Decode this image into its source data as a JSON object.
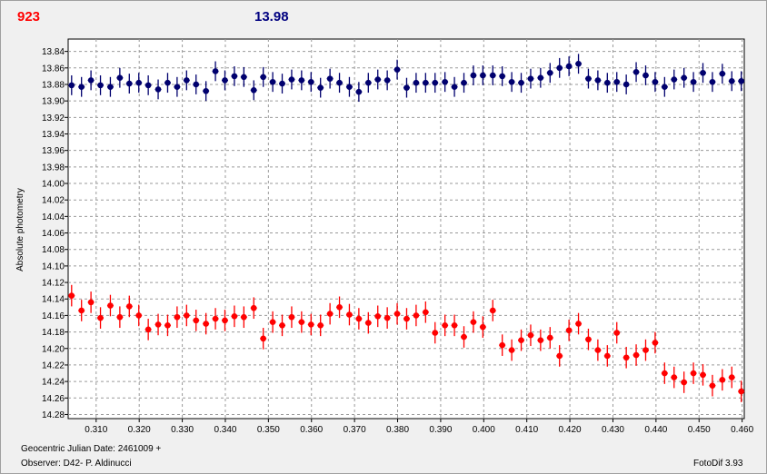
{
  "header": {
    "left_value": "923",
    "right_value": "13.98"
  },
  "footer": {
    "date_label": "Geocentric Julian Date: 2461009 +",
    "observer_label": "Observer: D42- P. Aldinucci",
    "software_label": "FotoDif 3.93"
  },
  "colors": {
    "blue_series": "#00006e",
    "red_series": "#ff0000",
    "grid": "#9a9a9a",
    "header_left": "#ff0000",
    "header_right": "#000080"
  },
  "chart_data": {
    "type": "scatter",
    "title": "",
    "xlabel": "",
    "ylabel": "Absolute photometry",
    "xlim": [
      0.3035,
      0.4605
    ],
    "ylim": [
      13.825,
      14.285
    ],
    "y_inverted": true,
    "grid": true,
    "x_ticks": [
      "0.310",
      "0.320",
      "0.330",
      "0.340",
      "0.350",
      "0.360",
      "0.370",
      "0.380",
      "0.390",
      "0.400",
      "0.410",
      "0.420",
      "0.430",
      "0.440",
      "0.450",
      "0.460"
    ],
    "y_ticks": [
      "13.84",
      "13.86",
      "13.88",
      "13.90",
      "13.92",
      "13.94",
      "13.96",
      "13.98",
      "14.00",
      "14.02",
      "14.04",
      "14.06",
      "14.08",
      "14.10",
      "14.12",
      "14.14",
      "14.16",
      "14.18",
      "14.20",
      "14.22",
      "14.24",
      "14.26",
      "14.28"
    ],
    "series": [
      {
        "color": "#00006e",
        "error": 0.012,
        "x": [
          0.3043,
          0.3066,
          0.3088,
          0.311,
          0.3133,
          0.3155,
          0.3177,
          0.3199,
          0.3221,
          0.3244,
          0.3266,
          0.3288,
          0.331,
          0.3332,
          0.3355,
          0.3377,
          0.3399,
          0.3421,
          0.3443,
          0.3466,
          0.3488,
          0.351,
          0.3532,
          0.3554,
          0.3577,
          0.3599,
          0.3621,
          0.3643,
          0.3665,
          0.3688,
          0.371,
          0.3732,
          0.3754,
          0.3776,
          0.3799,
          0.3821,
          0.3843,
          0.3865,
          0.3887,
          0.391,
          0.3932,
          0.3954,
          0.3976,
          0.3998,
          0.4021,
          0.4043,
          0.4065,
          0.4087,
          0.4109,
          0.4132,
          0.4154,
          0.4176,
          0.4198,
          0.422,
          0.4243,
          0.4265,
          0.4287,
          0.4309,
          0.4331,
          0.4354,
          0.4376,
          0.4398,
          0.442,
          0.4442,
          0.4465,
          0.4487,
          0.4509,
          0.4531,
          0.4554,
          0.4576,
          0.4598
        ],
        "y": [
          13.881,
          13.883,
          13.875,
          13.881,
          13.883,
          13.872,
          13.879,
          13.878,
          13.881,
          13.886,
          13.878,
          13.883,
          13.875,
          13.88,
          13.888,
          13.864,
          13.875,
          13.87,
          13.871,
          13.887,
          13.871,
          13.877,
          13.879,
          13.874,
          13.875,
          13.877,
          13.884,
          13.873,
          13.878,
          13.883,
          13.889,
          13.878,
          13.874,
          13.875,
          13.862,
          13.884,
          13.878,
          13.878,
          13.878,
          13.877,
          13.883,
          13.878,
          13.869,
          13.869,
          13.869,
          13.87,
          13.877,
          13.878,
          13.873,
          13.872,
          13.866,
          13.86,
          13.858,
          13.855,
          13.873,
          13.875,
          13.878,
          13.877,
          13.88,
          13.865,
          13.869,
          13.877,
          13.883,
          13.874,
          13.872,
          13.877,
          13.866,
          13.877,
          13.867,
          13.876,
          13.876
        ]
      },
      {
        "color": "#ff0000",
        "error": 0.013,
        "x": [
          0.3043,
          0.3066,
          0.3088,
          0.311,
          0.3133,
          0.3155,
          0.3177,
          0.3199,
          0.3221,
          0.3244,
          0.3266,
          0.3288,
          0.331,
          0.3332,
          0.3355,
          0.3377,
          0.3399,
          0.3421,
          0.3443,
          0.3466,
          0.3488,
          0.351,
          0.3532,
          0.3554,
          0.3577,
          0.3599,
          0.3621,
          0.3643,
          0.3665,
          0.3688,
          0.371,
          0.3732,
          0.3754,
          0.3776,
          0.3799,
          0.3821,
          0.3843,
          0.3865,
          0.3887,
          0.391,
          0.3932,
          0.3954,
          0.3976,
          0.3998,
          0.4021,
          0.4043,
          0.4065,
          0.4087,
          0.4109,
          0.4132,
          0.4154,
          0.4176,
          0.4198,
          0.422,
          0.4243,
          0.4265,
          0.4287,
          0.4309,
          0.4331,
          0.4354,
          0.4376,
          0.4398,
          0.442,
          0.4442,
          0.4465,
          0.4487,
          0.4509,
          0.4531,
          0.4554,
          0.4576,
          0.4598
        ],
        "y": [
          14.136,
          14.154,
          14.144,
          14.163,
          14.148,
          14.162,
          14.149,
          14.16,
          14.177,
          14.171,
          14.172,
          14.162,
          14.16,
          14.166,
          14.17,
          14.164,
          14.166,
          14.161,
          14.162,
          14.151,
          14.188,
          14.168,
          14.172,
          14.162,
          14.168,
          14.171,
          14.172,
          14.158,
          14.15,
          14.159,
          14.164,
          14.169,
          14.161,
          14.163,
          14.158,
          14.164,
          14.16,
          14.156,
          14.181,
          14.172,
          14.172,
          14.186,
          14.168,
          14.174,
          14.154,
          14.196,
          14.202,
          14.19,
          14.184,
          14.19,
          14.187,
          14.209,
          14.178,
          14.17,
          14.189,
          14.202,
          14.209,
          14.181,
          14.211,
          14.208,
          14.202,
          14.193,
          14.23,
          14.235,
          14.241,
          14.23,
          14.232,
          14.245,
          14.238,
          14.235,
          14.252
        ]
      }
    ]
  }
}
